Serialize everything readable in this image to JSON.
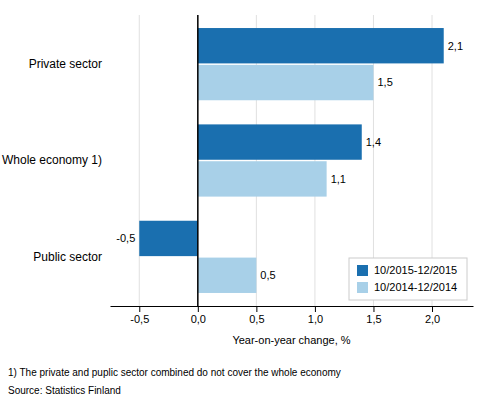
{
  "chart_data": {
    "type": "bar",
    "orientation": "horizontal",
    "categories": [
      "Public sector",
      "Whole economy 1)",
      "Private sector"
    ],
    "series": [
      {
        "name": "10/2015-12/2015",
        "color": "#1a6faf",
        "values": [
          -0.5,
          1.4,
          2.1
        ],
        "value_labels": [
          "-0,5",
          "1,4",
          "2,1"
        ]
      },
      {
        "name": "10/2014-12/2014",
        "color": "#a8d0e8",
        "values": [
          0.5,
          1.1,
          1.5
        ],
        "value_labels": [
          "0,5",
          "1,1",
          "1,5"
        ]
      }
    ],
    "xlabel": "Year-on-year change, %",
    "xlim": [
      -0.75,
      2.35
    ],
    "xticks": [
      {
        "value": -0.5,
        "label": "-0,5"
      },
      {
        "value": 0.0,
        "label": "0,0"
      },
      {
        "value": 0.5,
        "label": "0,5"
      },
      {
        "value": 1.0,
        "label": "1,0"
      },
      {
        "value": 1.5,
        "label": "1,5"
      },
      {
        "value": 2.0,
        "label": "2,0"
      }
    ],
    "grid": true,
    "legend": "lower right",
    "data_labels": true,
    "annotations": [
      "1) The private and puplic sector combined do not cover the whole economy",
      "Source: Statistics Finland"
    ]
  }
}
